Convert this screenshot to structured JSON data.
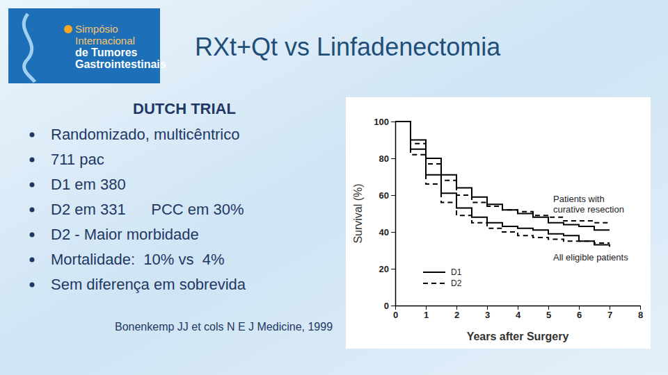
{
  "slide": {
    "logo": [
      "Simpósio",
      "Internacional",
      "de Tumores",
      "Gastrointestinais"
    ],
    "title": "RXt+Qt vs Linfadenectomia",
    "heading": "DUTCH TRIAL",
    "bullets": [
      "Randomizado, multicêntrico",
      "711 pac",
      "D1 em 380",
      "D2 em 331      PCC em 30%",
      "D2 - Maior morbidade",
      "Mortalidade:  10% vs  4%",
      "Sem diferença em sobrevida"
    ],
    "citation": "Bonenkemp JJ et cols N E J Medicine, 1999"
  },
  "chart_data": {
    "type": "line",
    "x_label": "Years after Surgery",
    "y_label": "Survival (%)",
    "x": [
      0,
      0.5,
      1,
      1.5,
      2,
      2.5,
      3,
      3.5,
      4,
      4.5,
      5,
      5.5,
      6,
      6.5,
      7
    ],
    "groups": [
      {
        "label": "Patients with curative resection",
        "series": [
          {
            "name": "D1",
            "line_style": "solid",
            "color": "#000000",
            "values": [
              100,
              90,
              80,
              71,
              64,
              59,
              55,
              52,
              50,
              48,
              45,
              44,
              43,
              41,
              41
            ]
          },
          {
            "name": "D2",
            "line_style": "dashed",
            "color": "#000000",
            "values": [
              100,
              88,
              77,
              68,
              60,
              56,
              54,
              52,
              51,
              49,
              48,
              46,
              46,
              45,
              45
            ]
          }
        ]
      },
      {
        "label": "All eligible patients",
        "series": [
          {
            "name": "D1",
            "line_style": "solid",
            "color": "#000000",
            "values": [
              100,
              85,
              71,
              61,
              53,
              48,
              45,
              43,
              42,
              41,
              39,
              38,
              35,
              33,
              32
            ]
          },
          {
            "name": "D2",
            "line_style": "dashed",
            "color": "#000000",
            "values": [
              100,
              82,
              66,
              56,
              49,
              45,
              42,
              40,
              38,
              37,
              36,
              35,
              35,
              34,
              34
            ]
          }
        ]
      }
    ],
    "xlim": [
      0,
      8
    ],
    "xticks": [
      0,
      1,
      2,
      3,
      4,
      5,
      6,
      7,
      8
    ],
    "ylim": [
      0,
      100
    ],
    "yticks": [
      0,
      20,
      40,
      60,
      80,
      100
    ],
    "legend": "bottom-left",
    "grid": false
  }
}
